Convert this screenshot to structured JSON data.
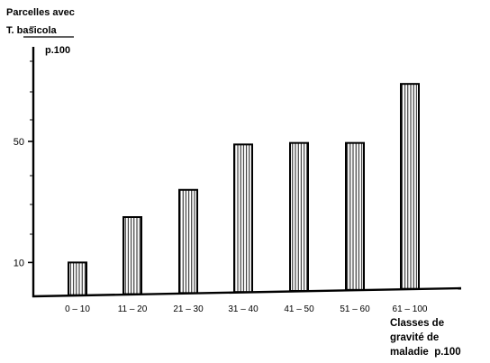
{
  "chart_data": {
    "type": "bar",
    "title": "",
    "ylabel_lines": [
      "Parcelles avec",
      "T. basicola",
      "p.100"
    ],
    "xlabel_lines": [
      "Classes de",
      "gravité de",
      "maladie  p.100"
    ],
    "categories": [
      "0-10",
      "11-20",
      "21-30",
      "31-40",
      "41-50",
      "51-60",
      "61-100"
    ],
    "values": [
      10,
      25,
      34,
      49,
      49.5,
      49.5,
      69
    ],
    "yticks": [
      10,
      50
    ],
    "ylim": [
      0,
      80
    ],
    "grid": false,
    "legend": "none"
  }
}
